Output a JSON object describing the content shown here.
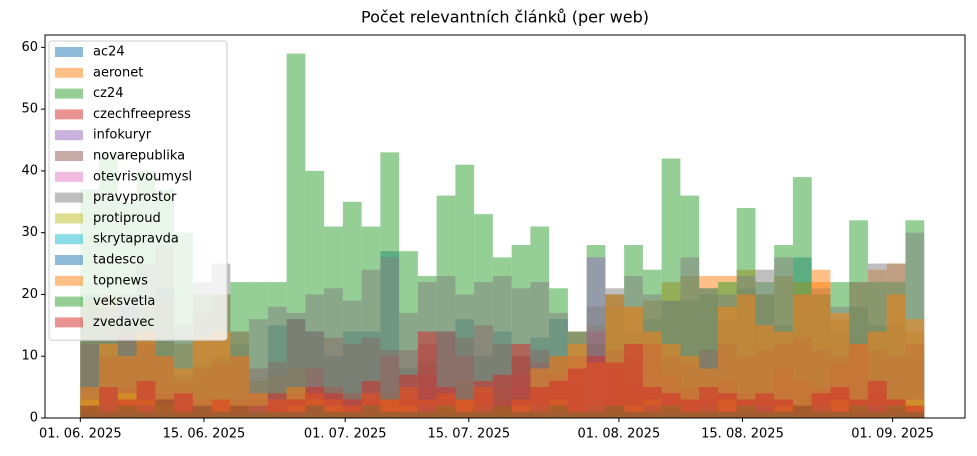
{
  "chart_data": {
    "type": "histogram",
    "title": "Počet relevantních článků (per web)",
    "bins": [
      0,
      2.124,
      4.248,
      6.372,
      8.496,
      10.62,
      12.744,
      14.868,
      16.992,
      19.116,
      21.24,
      23.364,
      25.488,
      27.612,
      29.736,
      31.86,
      33.984,
      36.108,
      38.232,
      40.356,
      42.48,
      44.604,
      46.728,
      48.852,
      50.976,
      53.1,
      55.224,
      57.348,
      59.472,
      61.596,
      63.72,
      65.844,
      67.968,
      70.092,
      72.216,
      74.34,
      76.464,
      78.588,
      80.712,
      82.836,
      84.96,
      87.084,
      89.208,
      91.332,
      93.456,
      95.58
    ],
    "xlim": [
      -4,
      100.2
    ],
    "xticks": [
      {
        "value": 0,
        "label": "01. 06. 2025"
      },
      {
        "value": 14,
        "label": "15. 06. 2025"
      },
      {
        "value": 30,
        "label": "01. 07. 2025"
      },
      {
        "value": 44,
        "label": "15. 07. 2025"
      },
      {
        "value": 61,
        "label": "01. 08. 2025"
      },
      {
        "value": 75,
        "label": "15. 08. 2025"
      },
      {
        "value": 92,
        "label": "01. 09. 2025"
      }
    ],
    "ylim": [
      0,
      62
    ],
    "yticks": [
      0,
      10,
      20,
      30,
      40,
      50,
      60
    ],
    "legend": "upper left",
    "alpha": 0.5,
    "series": [
      {
        "name": "ac24",
        "color": "#1f77b4",
        "values": [
          20,
          15,
          18,
          17,
          21,
          7,
          9,
          10,
          12,
          3,
          15,
          16,
          14,
          10,
          14,
          14,
          27,
          8,
          9,
          14,
          16,
          10,
          14,
          10,
          13,
          16,
          5,
          12,
          20,
          14,
          16,
          19,
          19,
          20,
          16,
          21,
          20,
          15,
          26,
          20,
          14,
          18,
          15,
          15,
          10
        ]
      },
      {
        "name": "aeronet",
        "color": "#ff7f0e",
        "values": [
          19,
          20,
          16,
          18,
          19,
          12,
          17,
          20,
          14,
          6,
          7,
          8,
          5,
          5,
          4,
          3,
          4,
          3,
          5,
          4,
          6,
          4,
          5,
          5,
          4,
          10,
          14,
          15,
          18,
          18,
          19,
          22,
          23,
          23,
          23,
          24,
          20,
          23,
          22,
          24,
          16,
          22,
          24,
          25,
          14
        ]
      },
      {
        "name": "cz24",
        "color": "#2ca02c",
        "values": [
          37,
          43,
          35,
          40,
          37,
          30,
          20,
          20,
          22,
          22,
          22,
          59,
          40,
          31,
          35,
          31,
          43,
          27,
          23,
          36,
          41,
          33,
          26,
          28,
          31,
          21,
          14,
          28,
          20,
          28,
          24,
          42,
          36,
          21,
          22,
          34,
          22,
          28,
          39,
          20,
          22,
          32,
          22,
          22,
          32
        ]
      },
      {
        "name": "czechfreepress",
        "color": "#d62728",
        "values": [
          3,
          2,
          5,
          2,
          4,
          2,
          3,
          2,
          3,
          4,
          2,
          4,
          8,
          5,
          4,
          3,
          10,
          4,
          7,
          14,
          10,
          4,
          3,
          7,
          9,
          7,
          10,
          14,
          8,
          6,
          12,
          7,
          5,
          3,
          6,
          4,
          3,
          8,
          6,
          5,
          9,
          12,
          4,
          3,
          2
        ]
      },
      {
        "name": "infokuryr",
        "color": "#9467bd",
        "values": [
          0,
          1,
          0,
          1,
          0,
          1,
          0,
          0,
          1,
          0,
          0,
          1,
          0,
          0,
          0,
          1,
          0,
          0,
          1,
          0,
          0,
          0,
          1,
          0,
          0,
          0,
          0,
          26,
          0,
          1,
          0,
          0,
          1,
          0,
          0,
          0,
          1,
          0,
          0,
          0,
          1,
          0,
          0,
          0,
          1
        ]
      },
      {
        "name": "novarepublika",
        "color": "#8c564b",
        "values": [
          12,
          10,
          14,
          12,
          10,
          6,
          8,
          9,
          10,
          8,
          9,
          16,
          14,
          13,
          12,
          13,
          11,
          11,
          12,
          14,
          13,
          15,
          12,
          10,
          11,
          10,
          8,
          12,
          11,
          10,
          12,
          10,
          9,
          11,
          12,
          10,
          11,
          12,
          13,
          11,
          10,
          12,
          11,
          10,
          12
        ]
      },
      {
        "name": "otevrisvoumysl",
        "color": "#e377c2",
        "values": [
          1,
          0,
          1,
          0,
          1,
          0,
          0,
          1,
          0,
          0,
          1,
          0,
          0,
          1,
          0,
          0,
          1,
          0,
          0,
          1,
          0,
          0,
          1,
          0,
          0,
          1,
          0,
          0,
          1,
          0,
          0,
          1,
          0,
          0,
          1,
          0,
          0,
          1,
          0,
          0,
          1,
          0,
          0,
          1,
          0
        ]
      },
      {
        "name": "pravyprostor",
        "color": "#7f7f7f",
        "values": [
          17,
          18,
          20,
          25,
          28,
          15,
          22,
          25,
          14,
          16,
          18,
          17,
          20,
          21,
          19,
          24,
          26,
          17,
          22,
          23,
          20,
          22,
          23,
          21,
          22,
          17,
          14,
          18,
          21,
          23,
          20,
          19,
          26,
          21,
          20,
          23,
          24,
          26,
          20,
          21,
          18,
          22,
          25,
          25,
          30
        ]
      },
      {
        "name": "protiproud",
        "color": "#bcbd22",
        "values": [
          3,
          2,
          4,
          3,
          2,
          1,
          2,
          3,
          1,
          2,
          1,
          2,
          3,
          2,
          1,
          2,
          3,
          2,
          1,
          2,
          3,
          2,
          1,
          2,
          2,
          3,
          1,
          2,
          1,
          2,
          3,
          2,
          1,
          2,
          3,
          2,
          1,
          2,
          1,
          2,
          3,
          2,
          1,
          2,
          3
        ]
      },
      {
        "name": "skrytapravda",
        "color": "#17becf",
        "values": [
          0,
          0,
          0,
          0,
          0,
          0,
          0,
          0,
          0,
          2,
          0,
          0,
          1,
          0,
          0,
          0,
          0,
          0,
          0,
          0,
          0,
          0,
          0,
          0,
          0,
          0,
          0,
          0,
          0,
          0,
          0,
          0,
          0,
          0,
          0,
          0,
          0,
          0,
          0,
          0,
          0,
          0,
          0,
          0,
          0
        ]
      },
      {
        "name": "tadesco",
        "color": "#1f77b4",
        "values": [
          1,
          2,
          1,
          2,
          1,
          1,
          2,
          1,
          1,
          2,
          1,
          1,
          2,
          1,
          1,
          2,
          1,
          1,
          2,
          1,
          1,
          2,
          1,
          1,
          2,
          1,
          1,
          2,
          1,
          1,
          2,
          1,
          1,
          2,
          1,
          1,
          2,
          1,
          1,
          2,
          1,
          1,
          2,
          1,
          1
        ]
      },
      {
        "name": "topnews",
        "color": "#ff7f0e",
        "values": [
          5,
          12,
          10,
          14,
          10,
          8,
          13,
          14,
          10,
          4,
          3,
          5,
          4,
          3,
          2,
          4,
          3,
          5,
          3,
          4,
          3,
          5,
          2,
          3,
          8,
          10,
          12,
          9,
          20,
          18,
          14,
          12,
          10,
          8,
          18,
          20,
          15,
          14,
          20,
          22,
          17,
          12,
          14,
          20,
          16
        ]
      },
      {
        "name": "veksvetla",
        "color": "#2ca02c",
        "values": [
          2,
          1,
          2,
          1,
          3,
          1,
          2,
          1,
          2,
          1,
          1,
          1,
          2,
          1,
          1,
          2,
          1,
          1,
          1,
          2,
          1,
          1,
          2,
          1,
          1,
          2,
          1,
          1,
          2,
          1,
          1,
          2,
          1,
          1,
          1,
          2,
          1,
          1,
          2,
          1,
          1,
          2,
          1,
          2,
          1
        ]
      },
      {
        "name": "zvedavec",
        "color": "#d62728",
        "values": [
          2,
          5,
          3,
          6,
          3,
          4,
          2,
          3,
          2,
          2,
          4,
          3,
          5,
          4,
          3,
          6,
          3,
          7,
          14,
          5,
          3,
          6,
          7,
          12,
          5,
          6,
          8,
          10,
          9,
          12,
          5,
          4,
          3,
          5,
          4,
          3,
          4,
          3,
          2,
          4,
          5,
          3,
          6,
          3,
          2
        ]
      }
    ]
  }
}
